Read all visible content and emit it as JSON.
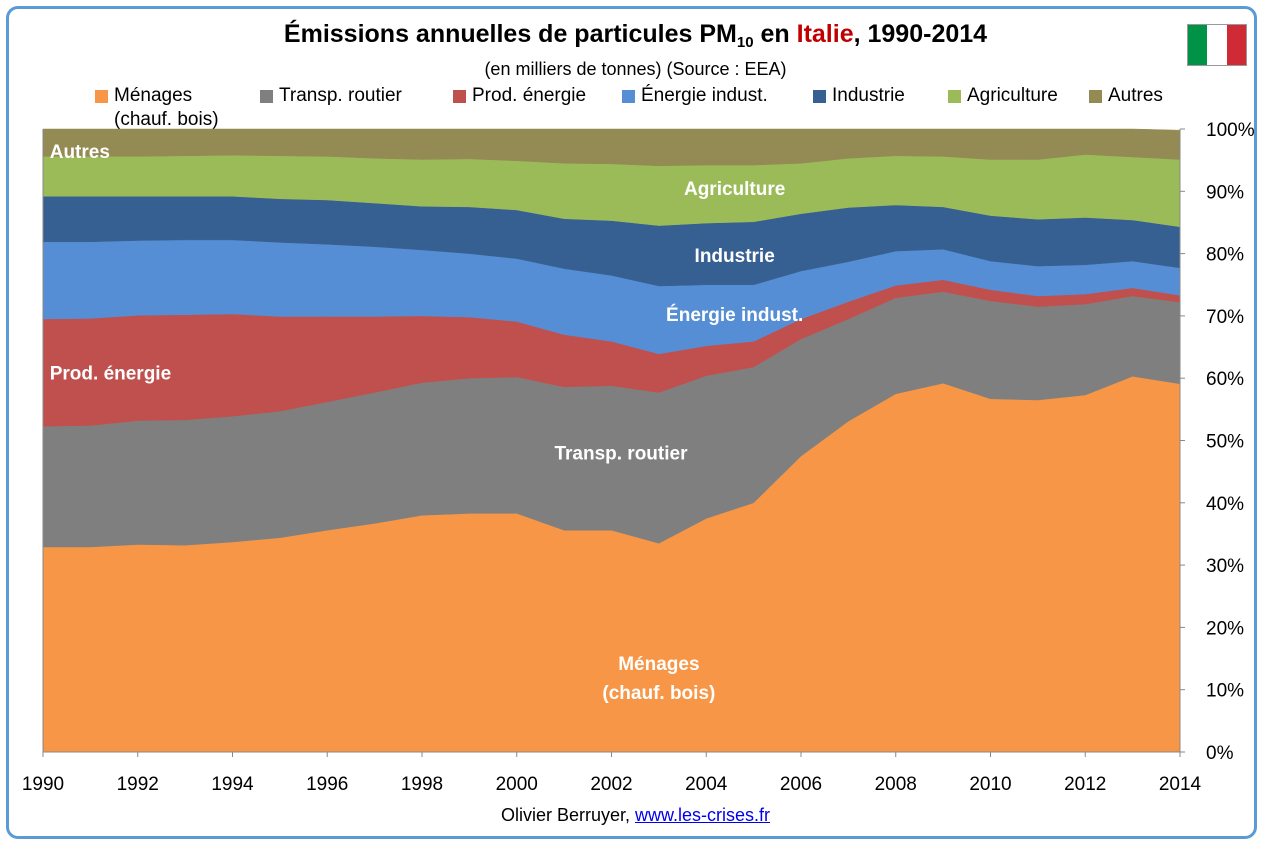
{
  "title": {
    "prefix": "Émissions annuelles de particules PM",
    "sub": "10",
    "mid": " en ",
    "highlight": "Italie",
    "suffix": ", 1990-2014"
  },
  "subtitle": "(en milliers de tonnes) (Source : EEA)",
  "flag": {
    "colors": [
      "#009246",
      "#ffffff",
      "#ce2b37"
    ]
  },
  "footer": {
    "author": "Olivier Berruyer,",
    "link": "www.les-crises.fr"
  },
  "legend": [
    {
      "label": "Ménages",
      "label2": "(chauf. bois)",
      "color": "#f79646"
    },
    {
      "label": "Transp. routier",
      "color": "#7f7f7f"
    },
    {
      "label": "Prod. énergie",
      "color": "#c0504d"
    },
    {
      "label": "Énergie indust.",
      "color": "#558ed5"
    },
    {
      "label": "Industrie",
      "color": "#376092"
    },
    {
      "label": "Agriculture",
      "color": "#9bbb59"
    },
    {
      "label": "Autres",
      "color": "#948a54"
    }
  ],
  "chart_data": {
    "type": "area",
    "stacked": true,
    "percent": true,
    "x": [
      1990,
      1991,
      1992,
      1993,
      1994,
      1995,
      1996,
      1997,
      1998,
      1999,
      2000,
      2001,
      2002,
      2003,
      2004,
      2005,
      2006,
      2007,
      2008,
      2009,
      2010,
      2011,
      2012,
      2013,
      2014
    ],
    "xticks": [
      "1990",
      "1992",
      "1994",
      "1996",
      "1998",
      "2000",
      "2002",
      "2004",
      "2006",
      "2008",
      "2010",
      "2012",
      "2014"
    ],
    "yticks": [
      "0%",
      "10%",
      "20%",
      "30%",
      "40%",
      "50%",
      "60%",
      "70%",
      "80%",
      "90%",
      "100%"
    ],
    "ylim": [
      0,
      100
    ],
    "series": [
      {
        "name": "Ménages (chauf. bois)",
        "color": "#f79646",
        "values": [
          32.9,
          32.9,
          33.3,
          33.2,
          33.7,
          34.4,
          35.6,
          36.7,
          38.0,
          38.3,
          38.3,
          35.6,
          35.6,
          33.5,
          37.5,
          40.0,
          47.5,
          53.1,
          57.5,
          59.2,
          56.7,
          56.5,
          57.3,
          60.3,
          59.1
        ]
      },
      {
        "name": "Transp. routier",
        "color": "#7f7f7f",
        "values": [
          19.4,
          19.5,
          19.9,
          20.1,
          20.2,
          20.3,
          20.6,
          21.0,
          21.3,
          21.7,
          21.9,
          23.0,
          23.2,
          24.2,
          22.9,
          21.8,
          18.8,
          16.4,
          15.4,
          14.7,
          15.7,
          15.0,
          14.6,
          12.9,
          13.1
        ]
      },
      {
        "name": "Prod. énergie",
        "color": "#c0504d",
        "values": [
          17.2,
          17.2,
          16.9,
          16.9,
          16.4,
          15.2,
          13.7,
          12.2,
          10.7,
          9.8,
          8.9,
          8.4,
          7.1,
          6.2,
          4.8,
          4.1,
          3.2,
          2.8,
          2.0,
          1.9,
          1.8,
          1.7,
          1.6,
          1.3,
          1.1
        ]
      },
      {
        "name": "Énergie indust.",
        "color": "#558ed5",
        "values": [
          12.4,
          12.3,
          12.0,
          12.0,
          11.9,
          11.9,
          11.6,
          11.2,
          10.6,
          10.2,
          10.1,
          10.6,
          10.6,
          10.9,
          9.8,
          9.1,
          7.7,
          6.4,
          5.5,
          4.9,
          4.6,
          4.8,
          4.7,
          4.3,
          4.4
        ]
      },
      {
        "name": "Industrie",
        "color": "#376092",
        "values": [
          7.3,
          7.3,
          7.1,
          7.0,
          7.0,
          7.0,
          7.1,
          7.0,
          7.0,
          7.5,
          7.8,
          8.0,
          8.8,
          9.7,
          9.9,
          10.1,
          9.2,
          8.7,
          7.4,
          6.8,
          7.3,
          7.5,
          7.6,
          6.6,
          6.6
        ]
      },
      {
        "name": "Agriculture",
        "color": "#9bbb59",
        "values": [
          6.4,
          6.4,
          6.4,
          6.5,
          6.6,
          6.9,
          7.0,
          7.2,
          7.5,
          7.7,
          7.9,
          8.9,
          9.1,
          9.6,
          9.3,
          9.1,
          8.1,
          7.9,
          7.9,
          8.1,
          9.0,
          9.6,
          10.1,
          10.1,
          10.8
        ]
      },
      {
        "name": "Autres",
        "color": "#948a54",
        "values": [
          4.4,
          4.4,
          4.4,
          4.3,
          4.2,
          4.3,
          4.4,
          4.7,
          4.9,
          4.8,
          5.1,
          5.5,
          5.6,
          5.9,
          5.8,
          5.8,
          5.5,
          4.7,
          4.3,
          4.4,
          4.9,
          4.9,
          4.8,
          4.5,
          4.7
        ]
      }
    ],
    "area_labels": [
      {
        "series": "Ménages (chauf. bois)",
        "text": "Ménages",
        "text2": "(chauf. bois)"
      },
      {
        "series": "Transp. routier",
        "text": "Transp. routier"
      },
      {
        "series": "Prod. énergie",
        "text": "Prod. énergie"
      },
      {
        "series": "Énergie indust.",
        "text": "Énergie indust."
      },
      {
        "series": "Industrie",
        "text": "Industrie"
      },
      {
        "series": "Agriculture",
        "text": "Agriculture"
      },
      {
        "series": "Autres",
        "text": "Autres"
      }
    ]
  }
}
